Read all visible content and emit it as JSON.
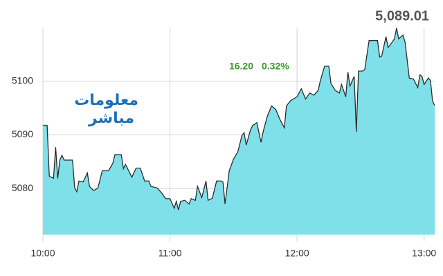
{
  "chart_data": {
    "type": "area",
    "price": "5,089.01",
    "change": "16.20",
    "change_pct": "0.32%",
    "logo": {
      "line1": "معلومات",
      "line2": "مباشر"
    },
    "series": [
      {
        "color": "#7fe0ea",
        "line_color": "#2b2b2b",
        "x": [
          0,
          2,
          3,
          5,
          6,
          7,
          8,
          9,
          10,
          12,
          14,
          15,
          16,
          17,
          19,
          21,
          22,
          24,
          26,
          28,
          31,
          33,
          34,
          37,
          38,
          39,
          42,
          44,
          46,
          48,
          50,
          51,
          54,
          56,
          58,
          60,
          62,
          63,
          64,
          65,
          67,
          69,
          70,
          72,
          73,
          75,
          77,
          78,
          80,
          82,
          84,
          85,
          86,
          88,
          90,
          92,
          94,
          95,
          96,
          98,
          99,
          101,
          103,
          104,
          106,
          108,
          110,
          112,
          114,
          115,
          117,
          120,
          122,
          124,
          126,
          128,
          130,
          131,
          133,
          135,
          136,
          138,
          140,
          141,
          143,
          144,
          145,
          147,
          148,
          149,
          151,
          152,
          154,
          156,
          158,
          159,
          160,
          162,
          163,
          164,
          166,
          167,
          168,
          170,
          171,
          173,
          175,
          177,
          178,
          179,
          180,
          182,
          183,
          184,
          185
        ],
        "values": [
          5091.8,
          5091.8,
          5082.3,
          5081.9,
          5087.7,
          5081.9,
          5085.3,
          5086.2,
          5085.3,
          5085.3,
          5085.3,
          5080.1,
          5079.4,
          5081.4,
          5081.2,
          5082.9,
          5080.4,
          5079.6,
          5080.1,
          5083.3,
          5083.3,
          5084.7,
          5086.3,
          5086.3,
          5083.7,
          5084.5,
          5082.1,
          5083.8,
          5083.8,
          5081.4,
          5081.4,
          5080.4,
          5080.1,
          5079.2,
          5078.1,
          5078.1,
          5076.3,
          5077.6,
          5076.0,
          5077.6,
          5077.8,
          5077.1,
          5078.1,
          5077.8,
          5080.4,
          5078.3,
          5081.4,
          5077.8,
          5078.2,
          5081.4,
          5081.4,
          5081.2,
          5077.1,
          5083.3,
          5085.5,
          5086.8,
          5089.9,
          5090.4,
          5088.1,
          5090.9,
          5091.7,
          5092.3,
          5088.6,
          5090.6,
          5093.5,
          5095.4,
          5094.7,
          5092.8,
          5091.3,
          5095.4,
          5096.4,
          5097.1,
          5098.6,
          5096.7,
          5097.8,
          5097.4,
          5098.3,
          5100.1,
          5102.8,
          5102.8,
          5099.6,
          5098.3,
          5097.8,
          5099.4,
          5097.1,
          5101.7,
          5099.1,
          5100.9,
          5090.6,
          5101.9,
          5101.9,
          5102.2,
          5107.6,
          5107.6,
          5107.6,
          5104.5,
          5104.7,
          5108.3,
          5106.3,
          5106.8,
          5107.9,
          5109.9,
          5107.9,
          5108.6,
          5107.3,
          5100.6,
          5100.4,
          5098.8,
          5101.2,
          5100.9,
          5099.4,
          5100.6,
          5100.1,
          5096.3,
          5095.5
        ]
      }
    ],
    "xlim": [
      0,
      185
    ],
    "xticks": [
      {
        "value": 0,
        "label": "10:00"
      },
      {
        "value": 60,
        "label": "11:00"
      },
      {
        "value": 120,
        "label": "12:00"
      },
      {
        "value": 180,
        "label": "13:00"
      }
    ],
    "ylim": [
      5071.4,
      5110
    ],
    "yticks": [
      5080,
      5090,
      5100
    ],
    "grid": true
  }
}
